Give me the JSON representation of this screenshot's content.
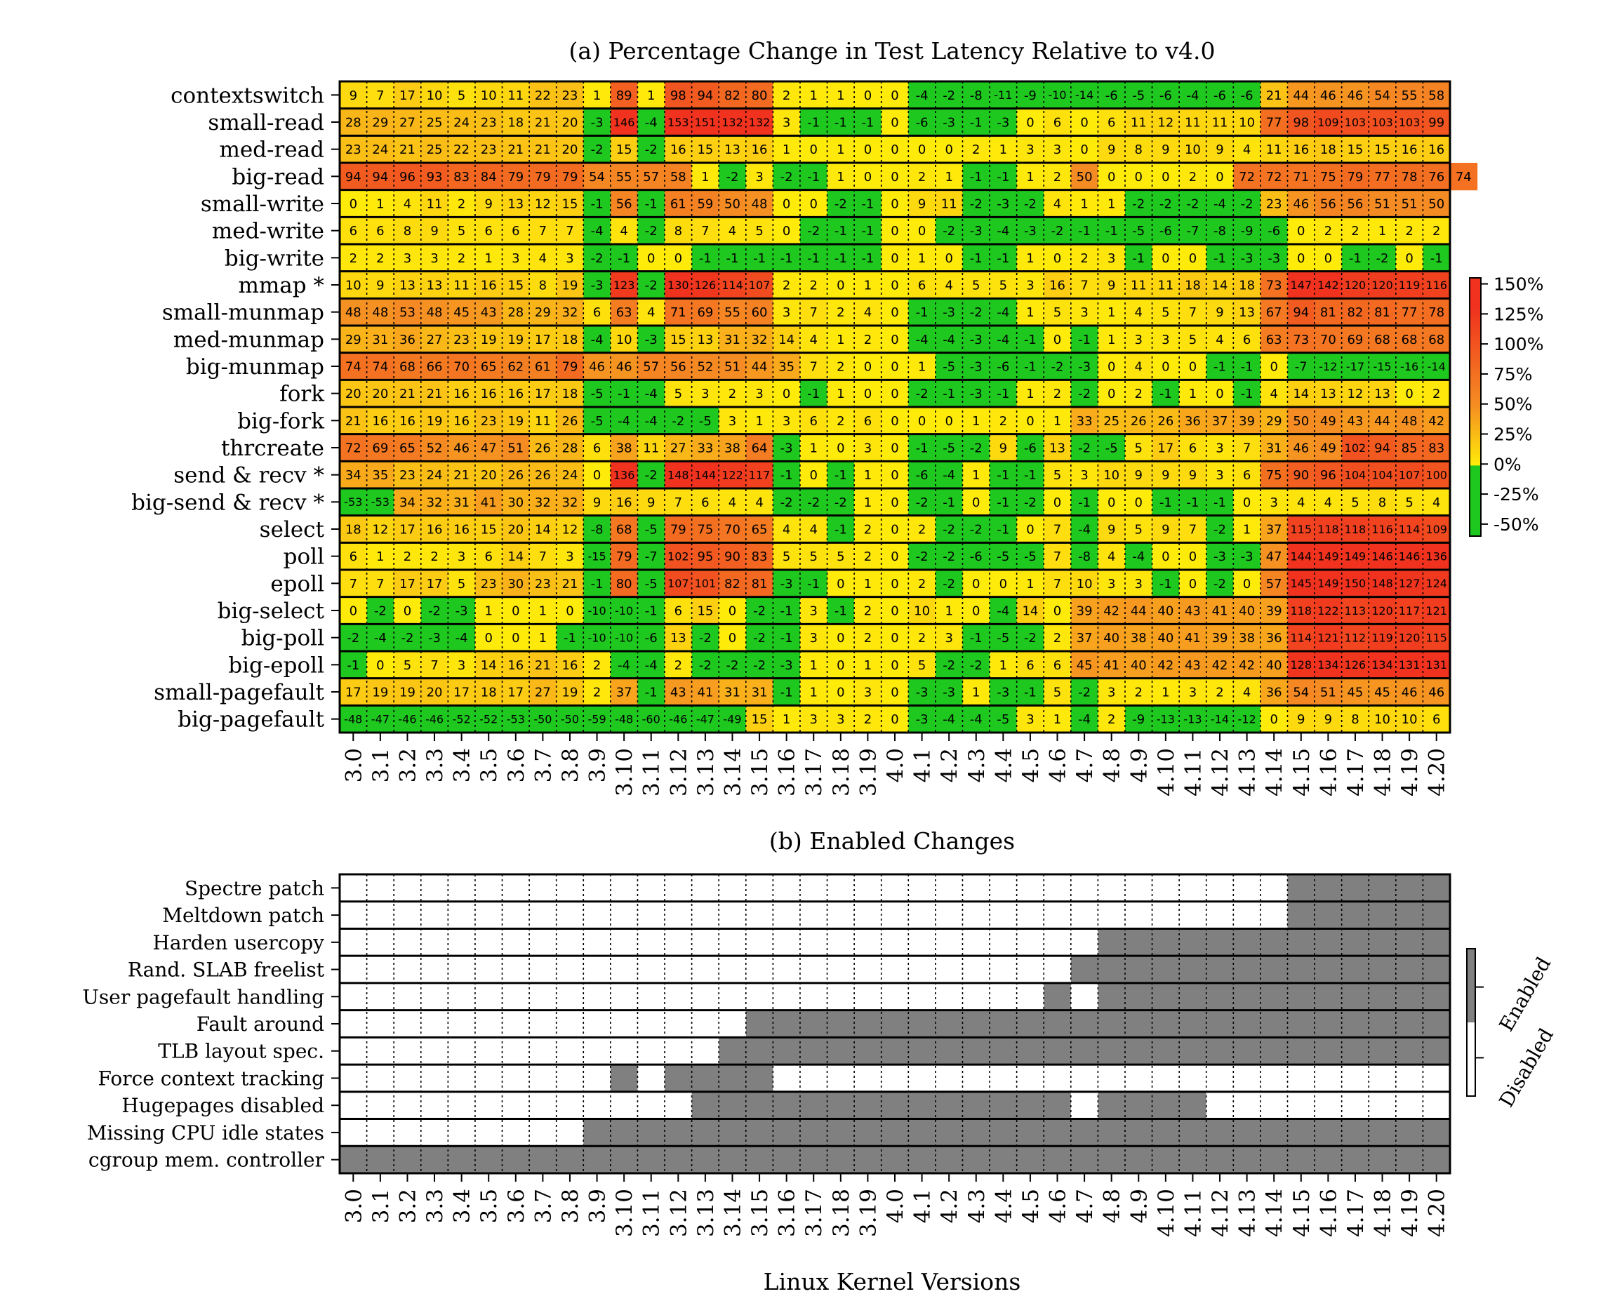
{
  "chart_data": [
    {
      "type": "heatmap",
      "title": "(a) Percentage Change in Test Latency Relative to v4.0",
      "x_tick_labels": [
        "3.0",
        "3.1",
        "3.2",
        "3.3",
        "3.4",
        "3.5",
        "3.6",
        "3.7",
        "3.8",
        "3.9",
        "3.10",
        "3.11",
        "3.12",
        "3.13",
        "3.14",
        "3.15",
        "3.16",
        "3.17",
        "3.18",
        "3.19",
        "4.0",
        "4.1",
        "4.2",
        "4.3",
        "4.4",
        "4.5",
        "4.6",
        "4.7",
        "4.8",
        "4.9",
        "4.10",
        "4.11",
        "4.12",
        "4.13",
        "4.14",
        "4.15",
        "4.16",
        "4.17",
        "4.18",
        "4.19",
        "4.20"
      ],
      "rows": [
        "contextswitch",
        "small-read",
        "med-read",
        "big-read",
        "small-write",
        "med-write",
        "big-write",
        "mmap *",
        "small-munmap",
        "med-munmap",
        "big-munmap",
        "fork",
        "big-fork",
        "thrcreate",
        "send & recv *",
        "big-send & recv *",
        "select",
        "poll",
        "epoll",
        "big-select",
        "big-poll",
        "big-epoll",
        "small-pagefault",
        "big-pagefault"
      ],
      "values": [
        [
          9,
          7,
          17,
          10,
          5,
          10,
          11,
          22,
          23,
          1,
          89,
          1,
          98,
          94,
          82,
          80,
          2,
          1,
          1,
          0,
          0,
          -4,
          -2,
          -8,
          -11,
          -9,
          -10,
          -14,
          -6,
          -5,
          -6,
          -4,
          -6,
          -6,
          21,
          44,
          46,
          46,
          54,
          55,
          58
        ],
        [
          28,
          29,
          27,
          25,
          24,
          23,
          18,
          21,
          20,
          -3,
          146,
          -4,
          153,
          151,
          132,
          132,
          3,
          -1,
          -1,
          -1,
          0,
          -6,
          -3,
          -1,
          -3,
          0,
          6,
          0,
          6,
          11,
          12,
          11,
          11,
          10,
          77,
          98,
          109,
          103,
          103,
          103,
          99
        ],
        [
          23,
          24,
          21,
          25,
          22,
          23,
          21,
          21,
          20,
          -2,
          15,
          -2,
          16,
          15,
          13,
          16,
          1,
          0,
          1,
          0,
          0,
          0,
          0,
          2,
          1,
          3,
          3,
          0,
          9,
          8,
          9,
          10,
          9,
          4,
          11,
          16,
          18,
          15,
          15,
          16,
          16
        ],
        [
          94,
          94,
          96,
          93,
          83,
          84,
          79,
          79,
          79,
          54,
          55,
          57,
          58,
          1,
          -2,
          3,
          -2,
          -1,
          1,
          0,
          0,
          2,
          1,
          -1,
          -1,
          1,
          2,
          50,
          0,
          0,
          0,
          2,
          0,
          72,
          72,
          71,
          75,
          79,
          77,
          78,
          76,
          74
        ],
        [
          0,
          1,
          4,
          11,
          2,
          9,
          13,
          12,
          15,
          -1,
          56,
          -1,
          61,
          59,
          50,
          48,
          0,
          0,
          -2,
          -1,
          0,
          9,
          11,
          -2,
          -3,
          -2,
          4,
          1,
          1,
          -2,
          -2,
          -2,
          -4,
          -2,
          23,
          46,
          56,
          56,
          51,
          51,
          50
        ],
        [
          6,
          6,
          8,
          9,
          5,
          6,
          6,
          7,
          7,
          -4,
          4,
          -2,
          8,
          7,
          4,
          5,
          0,
          -2,
          -1,
          -1,
          0,
          0,
          -2,
          -3,
          -4,
          -3,
          -2,
          -1,
          -1,
          -5,
          -6,
          -7,
          -8,
          -9,
          -6,
          0,
          2,
          2,
          1,
          2,
          2
        ],
        [
          2,
          2,
          3,
          3,
          2,
          1,
          3,
          4,
          3,
          -2,
          -1,
          0,
          0,
          -1,
          -1,
          -1,
          -1,
          -1,
          -1,
          -1,
          0,
          1,
          0,
          -1,
          -1,
          1,
          0,
          2,
          3,
          -1,
          0,
          0,
          -1,
          -3,
          -3,
          0,
          0,
          -1,
          -2,
          0,
          -1
        ],
        [
          10,
          9,
          13,
          13,
          11,
          16,
          15,
          8,
          19,
          -3,
          123,
          -2,
          130,
          126,
          114,
          107,
          2,
          2,
          0,
          1,
          0,
          6,
          4,
          5,
          5,
          3,
          16,
          7,
          9,
          11,
          11,
          18,
          14,
          18,
          73,
          147,
          142,
          120,
          120,
          119,
          116
        ],
        [
          48,
          48,
          53,
          48,
          45,
          43,
          28,
          29,
          32,
          6,
          63,
          4,
          71,
          69,
          55,
          60,
          3,
          7,
          2,
          4,
          0,
          -1,
          -3,
          -2,
          -4,
          1,
          5,
          3,
          1,
          4,
          5,
          7,
          9,
          13,
          67,
          94,
          81,
          82,
          81,
          77,
          78
        ],
        [
          29,
          31,
          36,
          27,
          23,
          19,
          19,
          17,
          18,
          -4,
          10,
          -3,
          15,
          13,
          31,
          32,
          14,
          4,
          1,
          2,
          0,
          -4,
          -4,
          -3,
          -4,
          -1,
          0,
          -1,
          1,
          3,
          3,
          5,
          4,
          6,
          63,
          73,
          70,
          69,
          68,
          68,
          68
        ],
        [
          74,
          74,
          68,
          66,
          70,
          65,
          62,
          61,
          79,
          46,
          46,
          57,
          56,
          52,
          51,
          44,
          35,
          7,
          2,
          0,
          0,
          1,
          -5,
          -3,
          -6,
          -1,
          -2,
          -3,
          0,
          4,
          0,
          0,
          -1,
          -1,
          0,
          -7,
          -12,
          -17,
          -15,
          -16,
          -14
        ],
        [
          20,
          20,
          21,
          21,
          16,
          16,
          16,
          17,
          18,
          -5,
          -1,
          -4,
          5,
          3,
          2,
          3,
          0,
          -1,
          1,
          0,
          0,
          -2,
          -1,
          -3,
          -1,
          1,
          2,
          -2,
          0,
          2,
          -1,
          1,
          0,
          -1,
          4,
          14,
          13,
          12,
          13,
          0,
          2
        ],
        [
          21,
          16,
          16,
          19,
          16,
          23,
          19,
          11,
          26,
          -5,
          -4,
          -4,
          -2,
          -5,
          3,
          1,
          3,
          6,
          2,
          6,
          0,
          0,
          0,
          1,
          2,
          0,
          1,
          33,
          25,
          26,
          26,
          36,
          37,
          39,
          29,
          50,
          49,
          43,
          44,
          48,
          42
        ],
        [
          72,
          69,
          65,
          52,
          46,
          47,
          51,
          26,
          28,
          6,
          38,
          11,
          27,
          33,
          38,
          64,
          -3,
          1,
          0,
          3,
          0,
          -1,
          -5,
          -2,
          9,
          -6,
          13,
          -2,
          -5,
          5,
          17,
          6,
          3,
          7,
          31,
          46,
          49,
          102,
          94,
          85,
          83
        ],
        [
          34,
          35,
          23,
          24,
          21,
          20,
          26,
          26,
          24,
          0,
          136,
          -2,
          148,
          144,
          122,
          117,
          -1,
          0,
          -1,
          1,
          0,
          -6,
          -4,
          1,
          -1,
          -1,
          5,
          3,
          10,
          9,
          9,
          9,
          3,
          6,
          75,
          90,
          96,
          104,
          104,
          107,
          100
        ],
        [
          -53,
          -53,
          34,
          32,
          31,
          41,
          30,
          32,
          32,
          9,
          16,
          9,
          7,
          6,
          4,
          4,
          -2,
          -2,
          -2,
          1,
          0,
          -2,
          -1,
          0,
          -1,
          -2,
          0,
          -1,
          0,
          0,
          -1,
          -1,
          -1,
          0,
          3,
          4,
          4,
          5,
          8,
          5,
          4
        ],
        [
          18,
          12,
          17,
          16,
          16,
          15,
          20,
          14,
          12,
          -8,
          68,
          -5,
          79,
          75,
          70,
          65,
          4,
          4,
          -1,
          2,
          0,
          2,
          -2,
          -2,
          -1,
          0,
          7,
          -4,
          9,
          5,
          9,
          7,
          -2,
          1,
          37,
          115,
          118,
          118,
          116,
          114,
          109
        ],
        [
          6,
          1,
          2,
          2,
          3,
          6,
          14,
          7,
          3,
          -15,
          79,
          -7,
          102,
          95,
          90,
          83,
          5,
          5,
          5,
          2,
          0,
          -2,
          -2,
          -6,
          -5,
          -5,
          7,
          -8,
          4,
          -4,
          0,
          0,
          -3,
          -3,
          47,
          144,
          149,
          149,
          146,
          146,
          136
        ],
        [
          7,
          7,
          17,
          17,
          5,
          23,
          30,
          23,
          21,
          -1,
          80,
          -5,
          107,
          101,
          82,
          81,
          -3,
          -1,
          0,
          1,
          0,
          2,
          -2,
          0,
          0,
          1,
          7,
          10,
          3,
          3,
          -1,
          0,
          -2,
          0,
          57,
          145,
          149,
          150,
          148,
          127,
          124
        ],
        [
          0,
          -2,
          0,
          -2,
          -3,
          1,
          0,
          1,
          0,
          -10,
          -10,
          -1,
          6,
          15,
          0,
          -2,
          -1,
          3,
          -1,
          2,
          0,
          10,
          1,
          0,
          -4,
          14,
          0,
          39,
          42,
          44,
          40,
          43,
          41,
          40,
          39,
          118,
          122,
          113,
          120,
          117,
          121
        ],
        [
          -2,
          -4,
          -2,
          -3,
          -4,
          0,
          0,
          1,
          -1,
          -10,
          -10,
          -6,
          13,
          -2,
          0,
          -2,
          -1,
          3,
          0,
          2,
          0,
          2,
          3,
          -1,
          -5,
          -2,
          2,
          37,
          40,
          38,
          40,
          41,
          39,
          38,
          36,
          114,
          121,
          112,
          119,
          120,
          115
        ],
        [
          -1,
          0,
          5,
          7,
          3,
          14,
          16,
          21,
          16,
          2,
          -4,
          -4,
          2,
          -2,
          -2,
          -2,
          -3,
          1,
          0,
          1,
          0,
          5,
          -2,
          -2,
          1,
          6,
          6,
          45,
          41,
          40,
          42,
          43,
          42,
          42,
          40,
          128,
          134,
          126,
          134,
          131,
          131
        ],
        [
          17,
          19,
          19,
          20,
          17,
          18,
          17,
          27,
          19,
          2,
          37,
          -1,
          43,
          41,
          31,
          31,
          -1,
          1,
          0,
          3,
          0,
          -3,
          -3,
          1,
          -3,
          -1,
          5,
          -2,
          3,
          2,
          1,
          3,
          2,
          4,
          36,
          54,
          51,
          45,
          45,
          46,
          46
        ],
        [
          -48,
          -47,
          -46,
          -46,
          -52,
          -52,
          -53,
          -50,
          -50,
          -59,
          -48,
          -60,
          -46,
          -47,
          -49,
          15,
          1,
          3,
          3,
          2,
          0,
          -3,
          -4,
          -4,
          -5,
          3,
          1,
          -4,
          2,
          -9,
          -13,
          -13,
          -14,
          -12,
          0,
          9,
          9,
          8,
          10,
          10,
          6
        ]
      ],
      "colorbar": {
        "tick_labels": [
          "150%",
          "125%",
          "100%",
          "75%",
          "50%",
          "25%",
          "0%",
          "-25%",
          "-50%"
        ],
        "range": [
          -60,
          155
        ],
        "colors": {
          "green": "#1ec81e",
          "yellow": "#ffeb0a",
          "orange": "#f58c23",
          "red": "#f0321e"
        }
      }
    },
    {
      "type": "heatmap",
      "title": "(b) Enabled Changes",
      "xlabel": "Linux Kernel Versions",
      "x_tick_labels": [
        "3.0",
        "3.1",
        "3.2",
        "3.3",
        "3.4",
        "3.5",
        "3.6",
        "3.7",
        "3.8",
        "3.9",
        "3.10",
        "3.11",
        "3.12",
        "3.13",
        "3.14",
        "3.15",
        "3.16",
        "3.17",
        "3.18",
        "3.19",
        "4.0",
        "4.1",
        "4.2",
        "4.3",
        "4.4",
        "4.5",
        "4.6",
        "4.7",
        "4.8",
        "4.9",
        "4.10",
        "4.11",
        "4.12",
        "4.13",
        "4.14",
        "4.15",
        "4.16",
        "4.17",
        "4.18",
        "4.19",
        "4.20"
      ],
      "rows": [
        {
          "label": "Spectre patch",
          "enabled_from": "4.15"
        },
        {
          "label": "Meltdown patch",
          "enabled_from": "4.15"
        },
        {
          "label": "Harden usercopy",
          "enabled_from": "4.8"
        },
        {
          "label": "Rand. SLAB freelist",
          "enabled_from": "4.7"
        },
        {
          "label": "User pagefault handling",
          "enabled_versions": [
            "4.6",
            "4.8",
            "4.9",
            "4.10",
            "4.11",
            "4.12",
            "4.13",
            "4.14",
            "4.15",
            "4.16",
            "4.17",
            "4.18",
            "4.19",
            "4.20"
          ]
        },
        {
          "label": "Fault around",
          "enabled_from": "3.15"
        },
        {
          "label": "TLB layout spec.",
          "enabled_from": "3.14"
        },
        {
          "label": "Force context tracking",
          "enabled_versions": [
            "3.10",
            "3.12",
            "3.13",
            "3.14",
            "3.15"
          ]
        },
        {
          "label": "Hugepages disabled",
          "enabled_versions": [
            "3.13",
            "3.14",
            "3.15",
            "3.16",
            "3.17",
            "3.18",
            "3.19",
            "4.0",
            "4.1",
            "4.2",
            "4.3",
            "4.4",
            "4.5",
            "4.6",
            "4.8",
            "4.9",
            "4.10",
            "4.11"
          ]
        },
        {
          "label": "Missing CPU idle states",
          "enabled_from": "3.9"
        },
        {
          "label": "cgroup mem. controller",
          "enabled_from": "3.0"
        }
      ],
      "legend": {
        "enabled": "Enabled",
        "disabled": "Disabled",
        "enabled_color": "#808080",
        "disabled_color": "#ffffff"
      }
    }
  ]
}
